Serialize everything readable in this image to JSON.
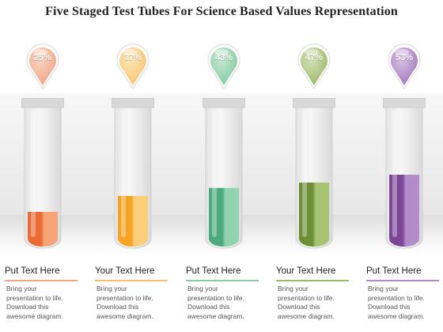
{
  "title": "Five Staged Test Tubes For Science Based Values Representation",
  "stages": [
    {
      "percent_label": "25%",
      "level": 0.25,
      "heading": "Put Text Here",
      "body": "Bring your\npresentation to life.\nDownload this\nawesome diagram.",
      "color": "#ec6a36",
      "light": "#f6a477",
      "pin_color": "#f0a789",
      "pin_light": "#f9d6c4",
      "rule_color": "#f0a588"
    },
    {
      "percent_label": "37%",
      "level": 0.37,
      "heading": "Your Text Here",
      "body": "Bring your\npresentation to life.\nDownload this\nawesome diagram.",
      "color": "#f5a323",
      "light": "#fbcf7a",
      "pin_color": "#f6c777",
      "pin_light": "#fde6b8",
      "rule_color": "#f5c46a"
    },
    {
      "percent_label": "43%",
      "level": 0.43,
      "heading": "Put Text Here",
      "body": "Bring your\npresentation to life.\nDownload this\nawesome diagram.",
      "color": "#4daa7e",
      "light": "#92d2b0",
      "pin_color": "#86c9a2",
      "pin_light": "#c8ead6",
      "rule_color": "#88caa4"
    },
    {
      "percent_label": "47%",
      "level": 0.47,
      "heading": "Your Text Here",
      "body": "Bring your\npresentation to life.\nDownload this\nawesome diagram.",
      "color": "#6c8f36",
      "light": "#a6c273",
      "pin_color": "#9fb96d",
      "pin_light": "#d7e4bb",
      "rule_color": "#9cb86a"
    },
    {
      "percent_label": "53%",
      "level": 0.53,
      "heading": "Put Text Here",
      "body": "Bring your\npresentation to life.\nDownload this\nawesome diagram.",
      "color": "#7d4797",
      "light": "#b58ccb",
      "pin_color": "#a47cbc",
      "pin_light": "#d9c4e6",
      "rule_color": "#ac8bc3"
    }
  ]
}
